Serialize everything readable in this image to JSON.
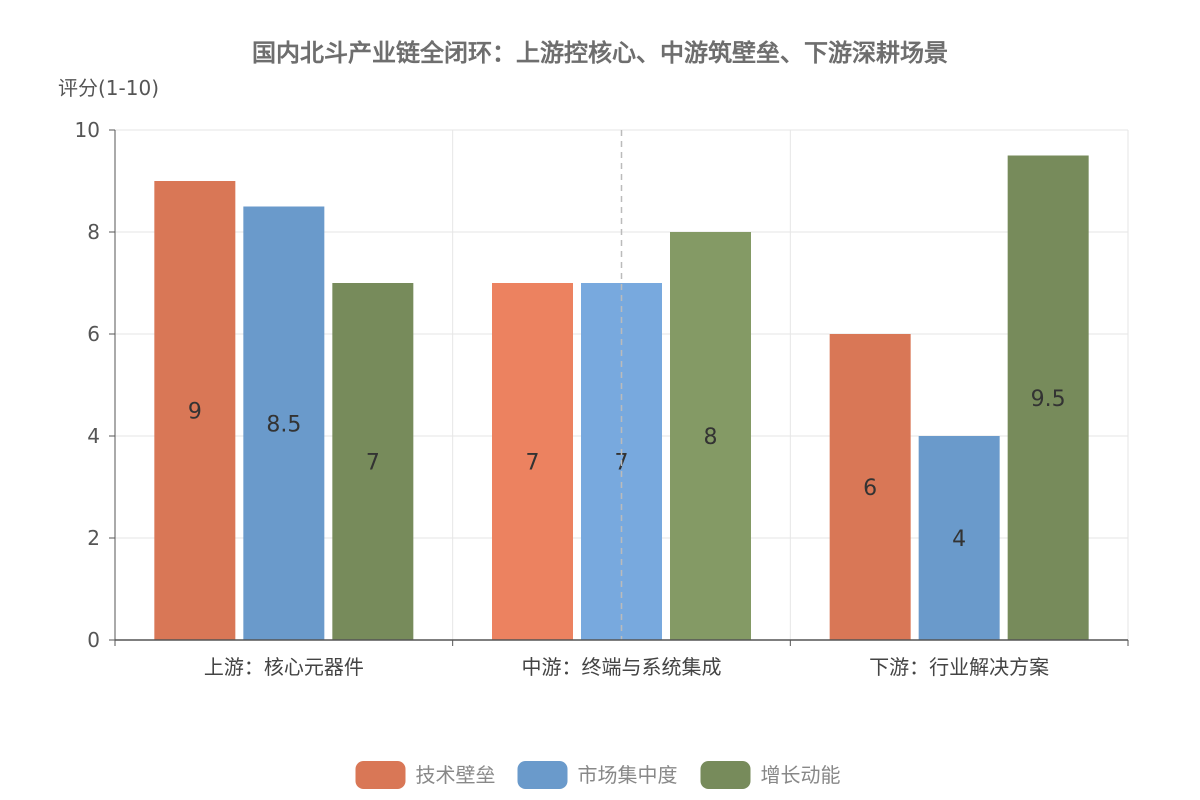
{
  "chart_data": {
    "type": "bar",
    "title": "国内北斗产业链全闭环：上游控核心、中游筑壁垒、下游深耕场景",
    "ylabel": "评分(1-10)",
    "ylim": [
      0,
      10
    ],
    "yticks": [
      0,
      2,
      4,
      6,
      8,
      10
    ],
    "categories": [
      "上游：核心元器件",
      "中游：终端与系统集成",
      "下游：行业解决方案"
    ],
    "series": [
      {
        "name": "技术壁垒",
        "values": [
          9,
          7,
          6
        ],
        "color": "#d97756",
        "alt_colors": [
          "#d97756",
          "#ec8260",
          "#d97756"
        ]
      },
      {
        "name": "市场集中度",
        "values": [
          8.5,
          7,
          4
        ],
        "color": "#6a9acb",
        "alt_colors": [
          "#6a9acb",
          "#78a9de",
          "#6a9acb"
        ]
      },
      {
        "name": "增长动能",
        "values": [
          7,
          8,
          9.5
        ],
        "color": "#778b5b",
        "alt_colors": [
          "#778b5b",
          "#849a65",
          "#778b5b"
        ]
      }
    ],
    "grid": true,
    "legend_position": "bottom-center"
  }
}
